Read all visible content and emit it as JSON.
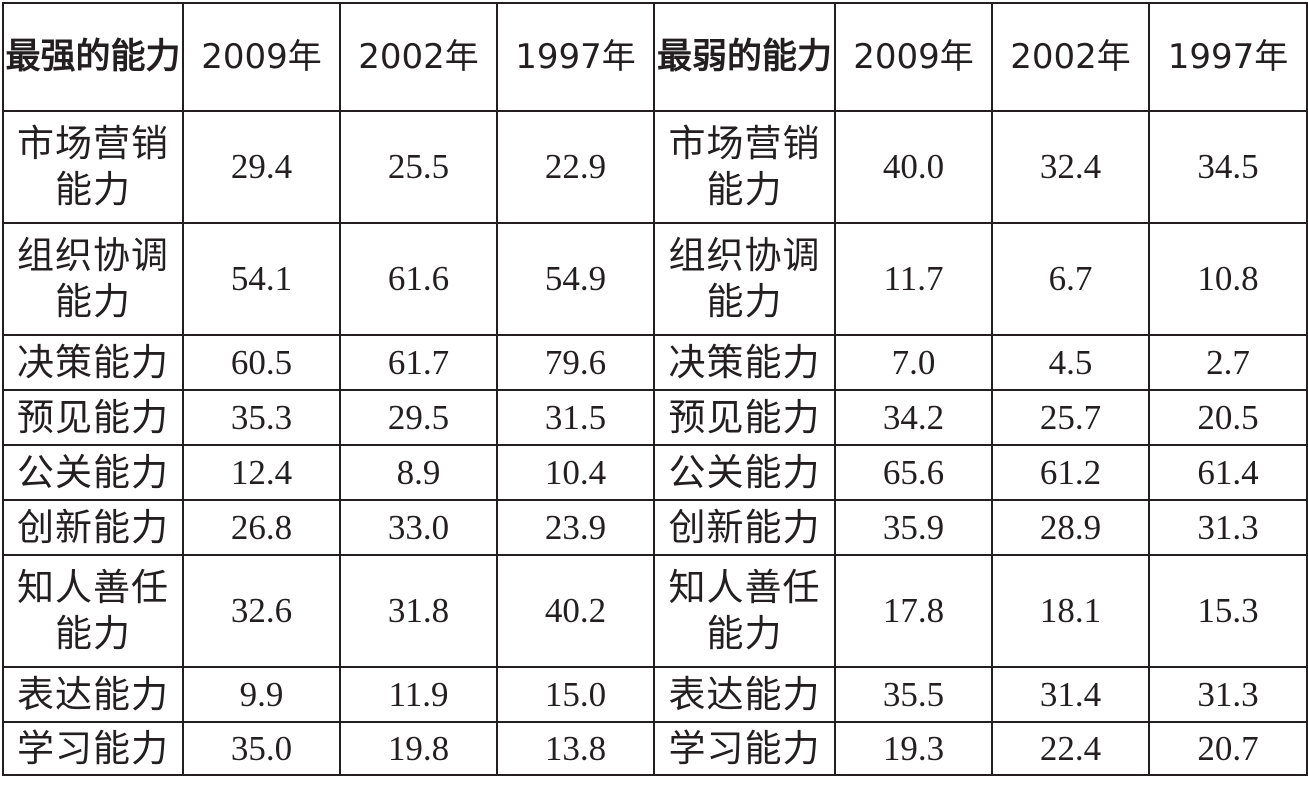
{
  "header": {
    "strongest_label": "最强的能力",
    "weakest_label": "最弱的能力",
    "years": [
      "2009年",
      "2002年",
      "1997年"
    ]
  },
  "rows": [
    {
      "strong_name": "市场营销能力",
      "strong": [
        "29.4",
        "25.5",
        "22.9"
      ],
      "weak_name": "市场营销能力",
      "weak": [
        "40.0",
        "32.4",
        "34.5"
      ]
    },
    {
      "strong_name": "组织协调能力",
      "strong": [
        "54.1",
        "61.6",
        "54.9"
      ],
      "weak_name": "组织协调能力",
      "weak": [
        "11.7",
        "6.7",
        "10.8"
      ]
    },
    {
      "strong_name": "决策能力",
      "strong": [
        "60.5",
        "61.7",
        "79.6"
      ],
      "weak_name": "决策能力",
      "weak": [
        "7.0",
        "4.5",
        "2.7"
      ]
    },
    {
      "strong_name": "预见能力",
      "strong": [
        "35.3",
        "29.5",
        "31.5"
      ],
      "weak_name": "预见能力",
      "weak": [
        "34.2",
        "25.7",
        "20.5"
      ]
    },
    {
      "strong_name": "公关能力",
      "strong": [
        "12.4",
        "8.9",
        "10.4"
      ],
      "weak_name": "公关能力",
      "weak": [
        "65.6",
        "61.2",
        "61.4"
      ]
    },
    {
      "strong_name": "创新能力",
      "strong": [
        "26.8",
        "33.0",
        "23.9"
      ],
      "weak_name": "创新能力",
      "weak": [
        "35.9",
        "28.9",
        "31.3"
      ]
    },
    {
      "strong_name": "知人善任能力",
      "strong": [
        "32.6",
        "31.8",
        "40.2"
      ],
      "weak_name": "知人善任能力",
      "weak": [
        "17.8",
        "18.1",
        "15.3"
      ]
    },
    {
      "strong_name": "表达能力",
      "strong": [
        "9.9",
        "11.9",
        "15.0"
      ],
      "weak_name": "表达能力",
      "weak": [
        "35.5",
        "31.4",
        "31.3"
      ]
    },
    {
      "strong_name": "学习能力",
      "strong": [
        "35.0",
        "19.8",
        "13.8"
      ],
      "weak_name": "学习能力",
      "weak": [
        "19.3",
        "22.4",
        "20.7"
      ]
    }
  ]
}
